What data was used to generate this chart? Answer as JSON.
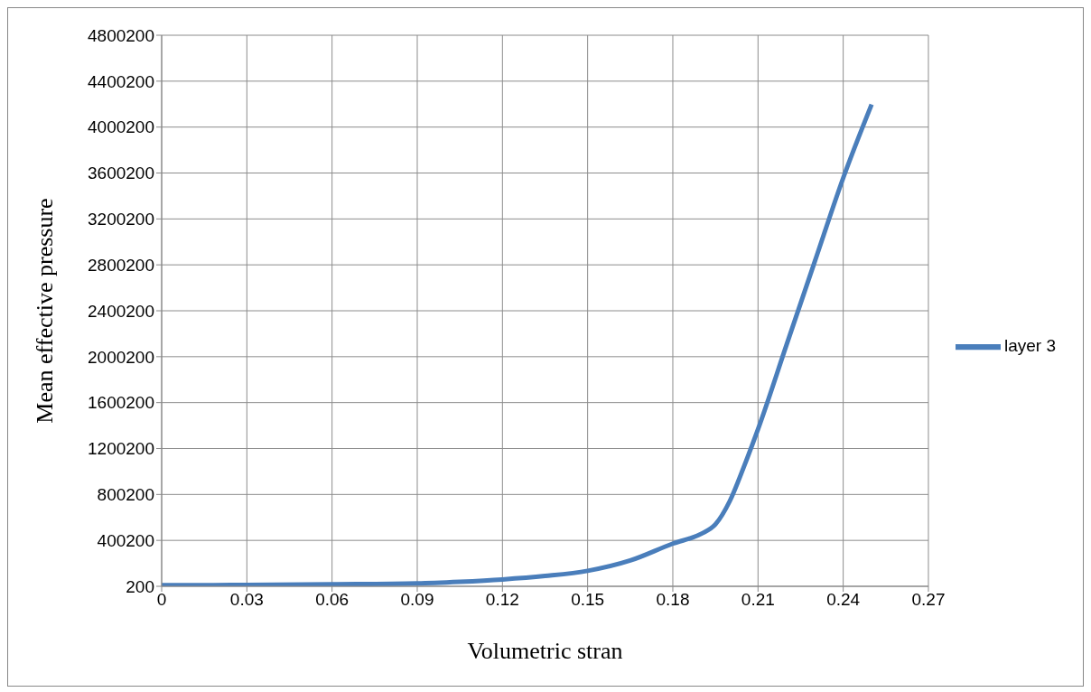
{
  "chart_data": {
    "type": "line",
    "xlabel": "Volumetric stran",
    "ylabel": "Mean effective pressure",
    "series": [
      {
        "name": "layer 3",
        "color": "#4a7ebb",
        "x": [
          0,
          0.03,
          0.06,
          0.09,
          0.105,
          0.12,
          0.135,
          0.15,
          0.165,
          0.18,
          0.19,
          0.195,
          0.2,
          0.205,
          0.21,
          0.22,
          0.23,
          0.24,
          0.25
        ],
        "values": [
          10000,
          12000,
          18000,
          26000,
          40000,
          60000,
          90000,
          135000,
          225000,
          372000,
          458000,
          540000,
          740000,
          1040000,
          1368000,
          2100000,
          2830000,
          3557000,
          4197000
        ]
      }
    ],
    "xlim": [
      0,
      0.27
    ],
    "xticks": [
      0,
      0.03,
      0.06,
      0.09,
      0.12,
      0.15,
      0.18,
      0.21,
      0.24,
      0.27
    ],
    "ylim": [
      200,
      4800200
    ],
    "yticks": [
      200,
      400200,
      800200,
      1200200,
      1600200,
      2000200,
      2400200,
      2800200,
      3200200,
      3600200,
      4000200,
      4400200,
      4800200
    ],
    "grid": true,
    "legend": "right",
    "marker": "none",
    "line_style": "solid"
  }
}
